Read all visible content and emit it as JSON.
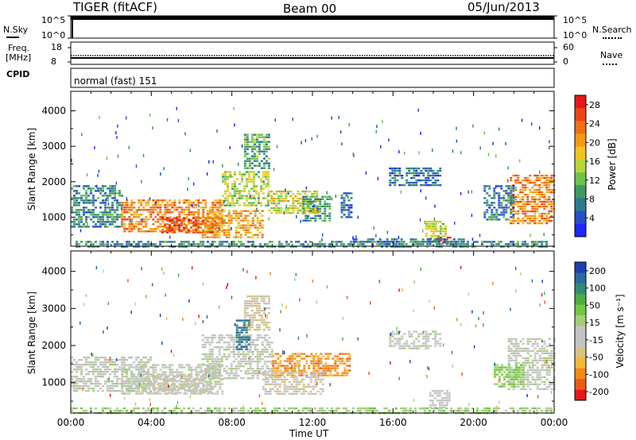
{
  "header": {
    "radar": "TIGER (fitACF)",
    "beam": "Beam 00",
    "date": "05/Jun/2013"
  },
  "nsky_panel": {
    "label": "N.Sky",
    "right_label": "N.Search",
    "ticks_left": [
      "10^5",
      "10^0"
    ],
    "ticks_right": [
      "10^5",
      "10^0"
    ]
  },
  "freq_panel": {
    "label_line1": "Freq.",
    "label_line2": "[MHz]",
    "right_label": "Nave",
    "ticks_left": [
      "18",
      "8"
    ],
    "ticks_right": [
      "60",
      "0"
    ]
  },
  "cpid_panel": {
    "label": "CPID",
    "mode": "normal (fast) 151"
  },
  "x_axis": {
    "ticks": [
      "00:00",
      "04:00",
      "08:00",
      "12:00",
      "16:00",
      "20:00",
      "00:00"
    ],
    "title": "Time UT"
  },
  "chart_data": [
    {
      "type": "heatmap",
      "name": "power",
      "ylabel": "Slant Range [km]",
      "yticks": [
        1000,
        2000,
        3000,
        4000
      ],
      "ylim": [
        180,
        4550
      ],
      "xlim_hours": [
        0,
        24
      ],
      "colorbar": {
        "title": "Power [dB]",
        "ticks": [
          "4",
          "8",
          "12",
          "16",
          "20",
          "24",
          "28"
        ],
        "range": [
          0,
          30
        ],
        "colors": [
          "#1f27ff",
          "#284fc8",
          "#2f7a8c",
          "#3c9a62",
          "#6cc24a",
          "#b9d636",
          "#f2c41e",
          "#f29a12",
          "#f07014",
          "#ee4416",
          "#e81818"
        ]
      },
      "regions": [
        {
          "t": [
            0.0,
            2.6
          ],
          "r": [
            700,
            1900
          ],
          "level": 8
        },
        {
          "t": [
            2.5,
            7.5
          ],
          "r": [
            600,
            1500
          ],
          "level": 22
        },
        {
          "t": [
            4.5,
            7.0
          ],
          "r": [
            550,
            1000
          ],
          "level": 26
        },
        {
          "t": [
            6.5,
            9.5
          ],
          "r": [
            400,
            1200
          ],
          "level": 20
        },
        {
          "t": [
            7.5,
            9.8
          ],
          "r": [
            1300,
            2300
          ],
          "level": 14
        },
        {
          "t": [
            8.6,
            9.9
          ],
          "r": [
            2400,
            3350
          ],
          "level": 10
        },
        {
          "t": [
            9.8,
            12.4
          ],
          "r": [
            1100,
            1750
          ],
          "level": 16
        },
        {
          "t": [
            11.5,
            12.9
          ],
          "r": [
            900,
            1600
          ],
          "level": 9
        },
        {
          "t": [
            13.4,
            13.9
          ],
          "r": [
            1000,
            1700
          ],
          "level": 6
        },
        {
          "t": [
            17.6,
            18.6
          ],
          "r": [
            300,
            900
          ],
          "level": 15
        },
        {
          "t": [
            18.2,
            19.0
          ],
          "r": [
            250,
            450
          ],
          "level": 27
        },
        {
          "t": [
            14.0,
            19.5
          ],
          "r": [
            200,
            400
          ],
          "level": 6
        },
        {
          "t": [
            0.0,
            24.0
          ],
          "r": [
            190,
            330
          ],
          "level": 8
        },
        {
          "t": [
            21.8,
            24.0
          ],
          "r": [
            800,
            2200
          ],
          "level": 22
        },
        {
          "t": [
            20.5,
            22.0
          ],
          "r": [
            900,
            1900
          ],
          "level": 7
        },
        {
          "t": [
            15.8,
            18.4
          ],
          "r": [
            1900,
            2400
          ],
          "level": 6
        }
      ]
    },
    {
      "type": "heatmap",
      "name": "velocity",
      "ylabel": "Slant Range [km]",
      "yticks": [
        1000,
        2000,
        3000,
        4000
      ],
      "ylim": [
        180,
        4550
      ],
      "xlim_hours": [
        0,
        24
      ],
      "colorbar": {
        "title": "Velocity [m s⁻¹]",
        "ticks": [
          "200",
          "100",
          "50",
          "15",
          "-15",
          "-50",
          "-100",
          "-200"
        ],
        "range": [
          -250,
          250
        ],
        "colors": [
          "#1e3fb0",
          "#2a6aa0",
          "#2f8c74",
          "#4cae42",
          "#74c740",
          "#a3cf7a",
          "#c4c4c4",
          "#c4c4c4",
          "#d9c27d",
          "#f2b73a",
          "#f08a18",
          "#ee5a18",
          "#e81818"
        ]
      },
      "regions": [
        {
          "t": [
            0.0,
            4.0
          ],
          "r": [
            800,
            1700
          ],
          "v": 0
        },
        {
          "t": [
            2.5,
            7.5
          ],
          "r": [
            700,
            1500
          ],
          "v": 5
        },
        {
          "t": [
            3.5,
            7.0
          ],
          "r": [
            700,
            1200
          ],
          "v": -40
        },
        {
          "t": [
            6.5,
            10.0
          ],
          "r": [
            1100,
            2300
          ],
          "v": 0
        },
        {
          "t": [
            8.6,
            9.9
          ],
          "r": [
            2400,
            3350
          ],
          "v": -60
        },
        {
          "t": [
            8.2,
            8.8
          ],
          "r": [
            1900,
            2700
          ],
          "v": 180
        },
        {
          "t": [
            10.0,
            13.8
          ],
          "r": [
            1200,
            1800
          ],
          "v": -150
        },
        {
          "t": [
            9.5,
            12.5
          ],
          "r": [
            700,
            1300
          ],
          "v": -45
        },
        {
          "t": [
            17.8,
            18.8
          ],
          "r": [
            300,
            800
          ],
          "v": -20
        },
        {
          "t": [
            0.0,
            24.0
          ],
          "r": [
            190,
            330
          ],
          "v": 40
        },
        {
          "t": [
            21.7,
            24.0
          ],
          "r": [
            800,
            2200
          ],
          "v": 0
        },
        {
          "t": [
            21.0,
            22.5
          ],
          "r": [
            900,
            1500
          ],
          "v": 60
        },
        {
          "t": [
            15.8,
            18.4
          ],
          "r": [
            1900,
            2400
          ],
          "v": 0
        }
      ]
    }
  ]
}
